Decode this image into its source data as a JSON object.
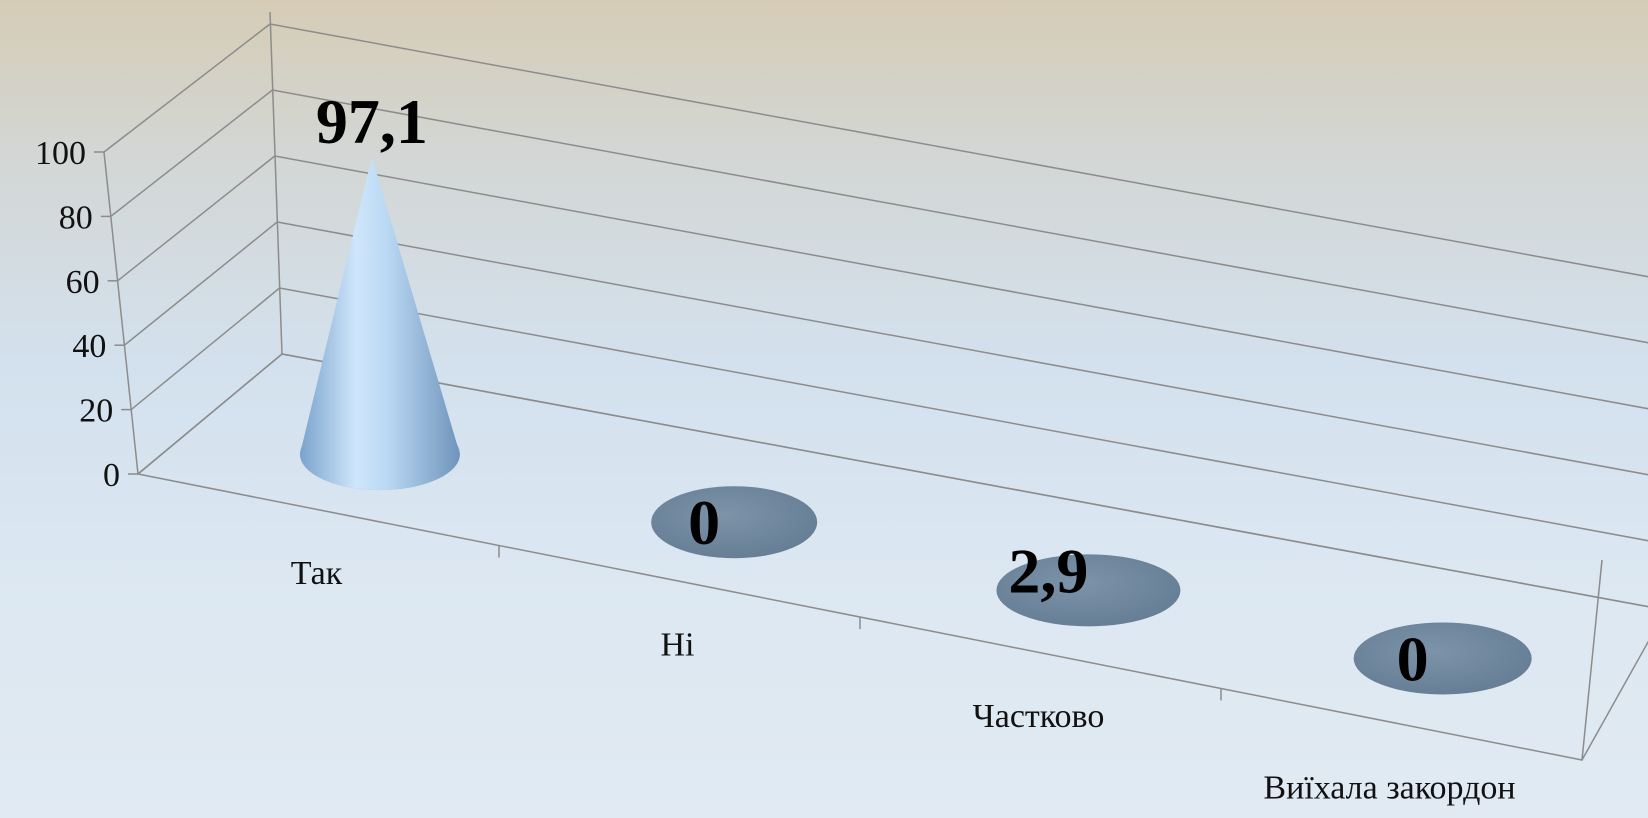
{
  "chart_data": {
    "type": "bar",
    "shape": "3d-cone",
    "categories": [
      "Так",
      "Ні",
      "Частково",
      "Виїхала закордон"
    ],
    "values": [
      97.1,
      0,
      2.9,
      0
    ],
    "data_labels": [
      "97,1",
      "0",
      "2,9",
      "0"
    ],
    "ylim": [
      0,
      100
    ],
    "yticks": [
      "0",
      "20",
      "40",
      "60",
      "80",
      "100"
    ],
    "grid": true,
    "legend": "none",
    "colors": {
      "cone": "#a9cdee",
      "cone_highlight": "#ddeeff",
      "cone_shadow": "#5f86ad",
      "disc": "#6b8298",
      "grid": "#8c8c8c",
      "text": "#111111"
    }
  }
}
